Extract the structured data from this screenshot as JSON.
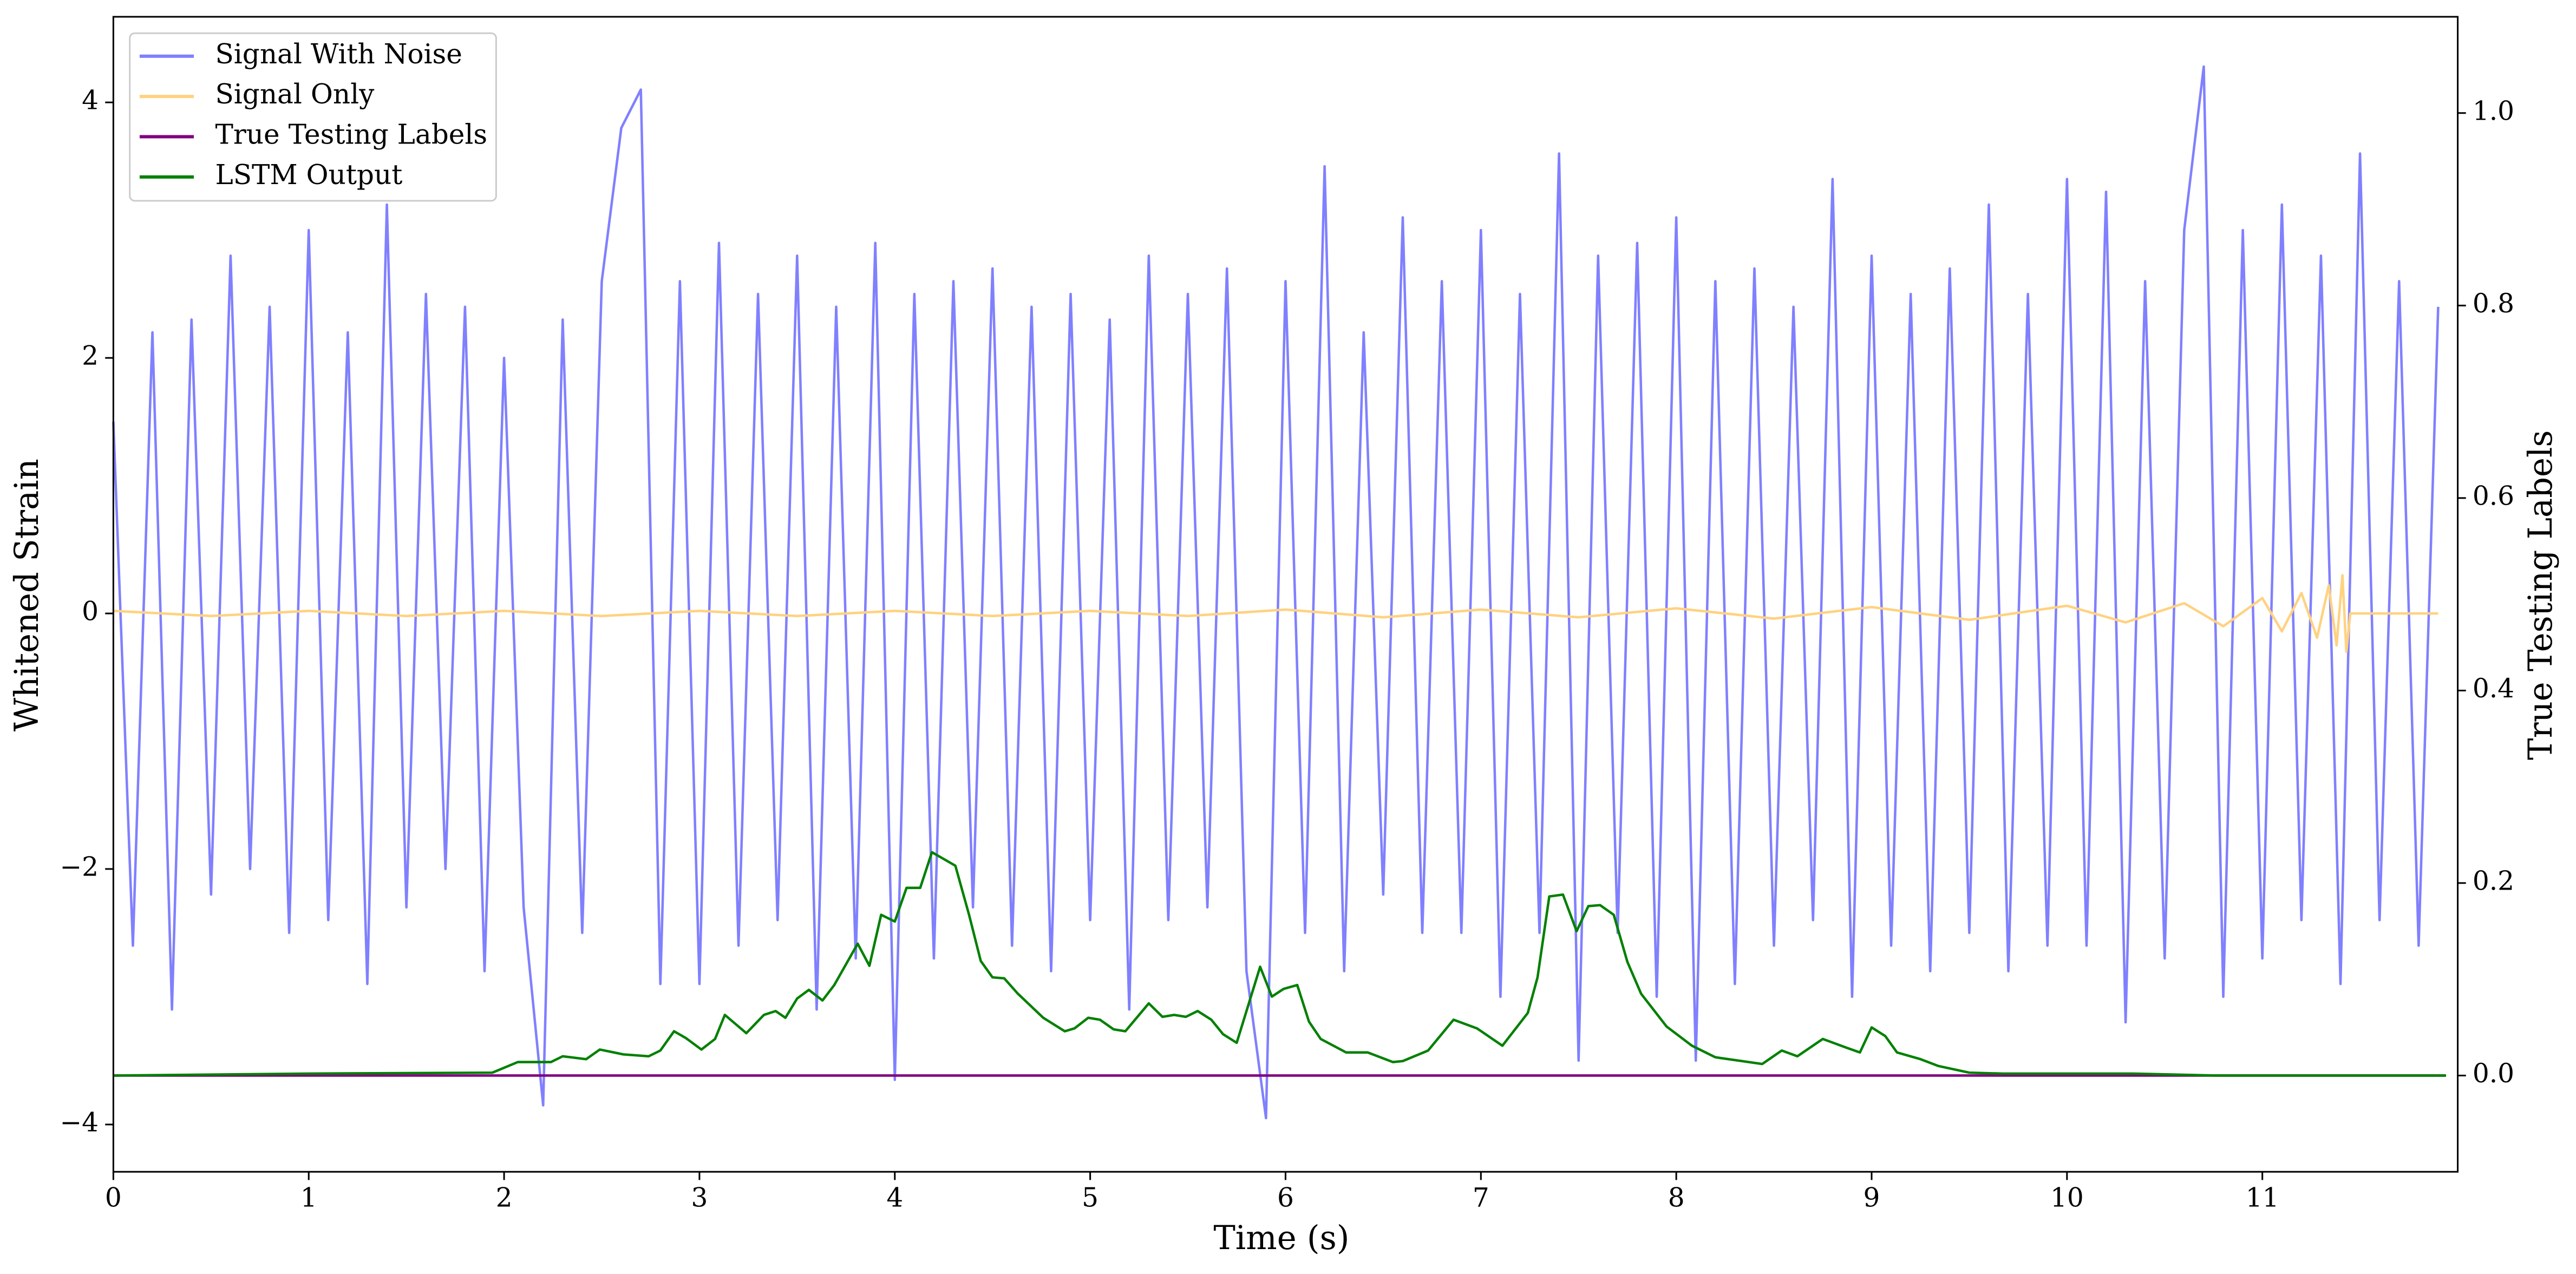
{
  "chart_data": {
    "type": "line",
    "xlabel": "Time (s)",
    "ylabel": "Whitened Strain",
    "y2label": "True Testing Labels",
    "xlim": [
      0,
      12
    ],
    "ylim": [
      -4.37,
      4.67
    ],
    "y2lim": [
      -0.1,
      1.1
    ],
    "xticks": [
      0,
      1,
      2,
      3,
      4,
      5,
      6,
      7,
      8,
      9,
      10,
      11
    ],
    "yticks": [
      {
        "value": -4,
        "label": "−4"
      },
      {
        "value": -2,
        "label": "−2"
      },
      0,
      2,
      4
    ],
    "y2ticks": [
      {
        "value": 0,
        "label": "0.0"
      },
      0.2,
      0.4,
      0.6,
      0.8,
      {
        "value": 1,
        "label": "1.0"
      }
    ],
    "legend": "upper left",
    "grid": false,
    "series": [
      {
        "name": "Signal With Noise",
        "color": "#8080ff",
        "x": [
          0,
          0.1,
          0.2,
          0.3,
          0.4,
          0.5,
          0.6,
          0.7,
          0.8,
          0.9,
          1,
          1.1,
          1.2,
          1.3,
          1.4,
          1.5,
          1.6,
          1.7,
          1.8,
          1.9,
          2,
          2.1,
          2.2,
          2.3,
          2.4,
          2.5,
          2.6,
          2.7,
          2.8,
          2.9,
          3,
          3.1,
          3.2,
          3.3,
          3.4,
          3.5,
          3.6,
          3.7,
          3.8,
          3.9,
          4,
          4.1,
          4.2,
          4.3,
          4.4,
          4.5,
          4.6,
          4.7,
          4.8,
          4.9,
          5,
          5.1,
          5.2,
          5.3,
          5.4,
          5.5,
          5.6,
          5.7,
          5.8,
          5.9,
          6,
          6.1,
          6.2,
          6.3,
          6.4,
          6.5,
          6.6,
          6.7,
          6.8,
          6.9,
          7,
          7.1,
          7.2,
          7.3,
          7.4,
          7.5,
          7.6,
          7.7,
          7.8,
          7.9,
          8,
          8.1,
          8.2,
          8.3,
          8.4,
          8.5,
          8.6,
          8.7,
          8.8,
          8.9,
          9,
          9.1,
          9.2,
          9.3,
          9.4,
          9.5,
          9.6,
          9.7,
          9.8,
          9.9,
          10,
          10.1,
          10.2,
          10.3,
          10.4,
          10.5,
          10.6,
          10.7,
          10.8,
          10.9,
          11,
          11.1,
          11.2,
          11.3,
          11.4,
          11.5,
          11.6,
          11.7,
          11.8,
          11.9
        ],
        "values": [
          1.5,
          -2.6,
          2.2,
          -3.1,
          2.3,
          -2.2,
          2.8,
          -2.0,
          2.4,
          -2.5,
          3.0,
          -2.4,
          2.2,
          -2.9,
          3.2,
          -2.3,
          2.5,
          -2.0,
          2.4,
          -2.8,
          2.0,
          -2.3,
          -3.85,
          2.3,
          -2.5,
          2.6,
          3.8,
          4.1,
          -2.9,
          2.6,
          -2.9,
          2.9,
          -2.6,
          2.5,
          -2.4,
          2.8,
          -3.1,
          2.4,
          -2.7,
          2.9,
          -3.65,
          2.5,
          -2.7,
          2.6,
          -2.3,
          2.7,
          -2.6,
          2.4,
          -2.8,
          2.5,
          -2.4,
          2.3,
          -3.1,
          2.8,
          -2.4,
          2.5,
          -2.3,
          2.7,
          -2.8,
          -3.95,
          2.6,
          -2.5,
          3.5,
          -2.8,
          2.2,
          -2.2,
          3.1,
          -2.5,
          2.6,
          -2.5,
          3.0,
          -3.0,
          2.5,
          -2.5,
          3.6,
          -3.5,
          2.8,
          -2.5,
          2.9,
          -3.0,
          3.1,
          -3.5,
          2.6,
          -2.9,
          2.7,
          -2.6,
          2.4,
          -2.4,
          3.4,
          -3.0,
          2.8,
          -2.6,
          2.5,
          -2.8,
          2.7,
          -2.5,
          3.2,
          -2.8,
          2.5,
          -2.6,
          3.4,
          -2.6,
          3.3,
          -3.2,
          2.6,
          -2.7,
          3.0,
          4.28,
          -3.0,
          3.0,
          -2.7,
          3.2,
          -2.4,
          2.8,
          -2.9,
          3.6,
          -2.4,
          2.6,
          -2.6,
          2.4
        ]
      },
      {
        "name": "Signal Only",
        "color": "#ffd280",
        "x": [
          0,
          0.5,
          1,
          1.5,
          2,
          2.5,
          3,
          3.5,
          4,
          4.5,
          5,
          5.5,
          6,
          6.5,
          7,
          7.5,
          8,
          8.5,
          9,
          9.5,
          10,
          10.3,
          10.6,
          10.8,
          11,
          11.1,
          11.2,
          11.28,
          11.34,
          11.38,
          11.41,
          11.43,
          11.45,
          11.9
        ],
        "values": [
          0.02,
          -0.02,
          0.02,
          -0.02,
          0.02,
          -0.02,
          0.02,
          -0.02,
          0.02,
          -0.02,
          0.02,
          -0.02,
          0.03,
          -0.03,
          0.03,
          -0.03,
          0.04,
          -0.04,
          0.05,
          -0.05,
          0.06,
          -0.07,
          0.08,
          -0.1,
          0.12,
          -0.14,
          0.16,
          -0.19,
          0.22,
          -0.25,
          0.3,
          -0.3,
          0,
          0
        ]
      },
      {
        "name": "True Testing Labels",
        "color": "#800080",
        "axis": "y2",
        "x": [
          0,
          11.94
        ],
        "values": [
          0,
          0
        ]
      },
      {
        "name": "LSTM Output",
        "color": "#008000",
        "axis": "y2",
        "x": [
          0,
          1,
          1.94,
          2.07,
          2.24,
          2.3,
          2.42,
          2.49,
          2.61,
          2.74,
          2.8,
          2.87,
          2.93,
          3.01,
          3.08,
          3.13,
          3.24,
          3.33,
          3.39,
          3.44,
          3.5,
          3.56,
          3.63,
          3.69,
          3.81,
          3.87,
          3.93,
          4.0,
          4.06,
          4.13,
          4.19,
          4.25,
          4.31,
          4.38,
          4.44,
          4.5,
          4.56,
          4.63,
          4.76,
          4.87,
          4.92,
          4.99,
          5.05,
          5.12,
          5.18,
          5.3,
          5.37,
          5.43,
          5.49,
          5.55,
          5.62,
          5.68,
          5.75,
          5.87,
          5.93,
          5.99,
          6.06,
          6.12,
          6.18,
          6.31,
          6.42,
          6.55,
          6.6,
          6.73,
          6.86,
          6.98,
          7.11,
          7.24,
          7.29,
          7.35,
          7.42,
          7.49,
          7.55,
          7.61,
          7.68,
          7.75,
          7.82,
          7.95,
          8.08,
          8.2,
          8.44,
          8.54,
          8.62,
          8.75,
          8.87,
          8.94,
          9.0,
          9.07,
          9.13,
          9.25,
          9.34,
          9.5,
          9.67,
          9.92,
          10.34,
          10.76,
          11.18,
          11.94
        ],
        "values": [
          0,
          0.002,
          0.003,
          0.014,
          0.014,
          0.02,
          0.017,
          0.027,
          0.022,
          0.02,
          0.026,
          0.046,
          0.039,
          0.027,
          0.038,
          0.063,
          0.044,
          0.063,
          0.067,
          0.06,
          0.08,
          0.089,
          0.078,
          0.094,
          0.137,
          0.114,
          0.167,
          0.16,
          0.195,
          0.195,
          0.232,
          0.225,
          0.218,
          0.167,
          0.119,
          0.102,
          0.101,
          0.085,
          0.06,
          0.046,
          0.049,
          0.06,
          0.058,
          0.048,
          0.046,
          0.075,
          0.061,
          0.063,
          0.061,
          0.067,
          0.058,
          0.043,
          0.034,
          0.113,
          0.082,
          0.09,
          0.094,
          0.056,
          0.038,
          0.024,
          0.024,
          0.014,
          0.015,
          0.026,
          0.058,
          0.049,
          0.031,
          0.065,
          0.102,
          0.186,
          0.188,
          0.15,
          0.176,
          0.177,
          0.167,
          0.118,
          0.085,
          0.051,
          0.031,
          0.019,
          0.012,
          0.026,
          0.02,
          0.038,
          0.029,
          0.024,
          0.05,
          0.041,
          0.024,
          0.017,
          0.01,
          0.003,
          0.002,
          0.002,
          0.002,
          0,
          0,
          0
        ]
      }
    ]
  }
}
